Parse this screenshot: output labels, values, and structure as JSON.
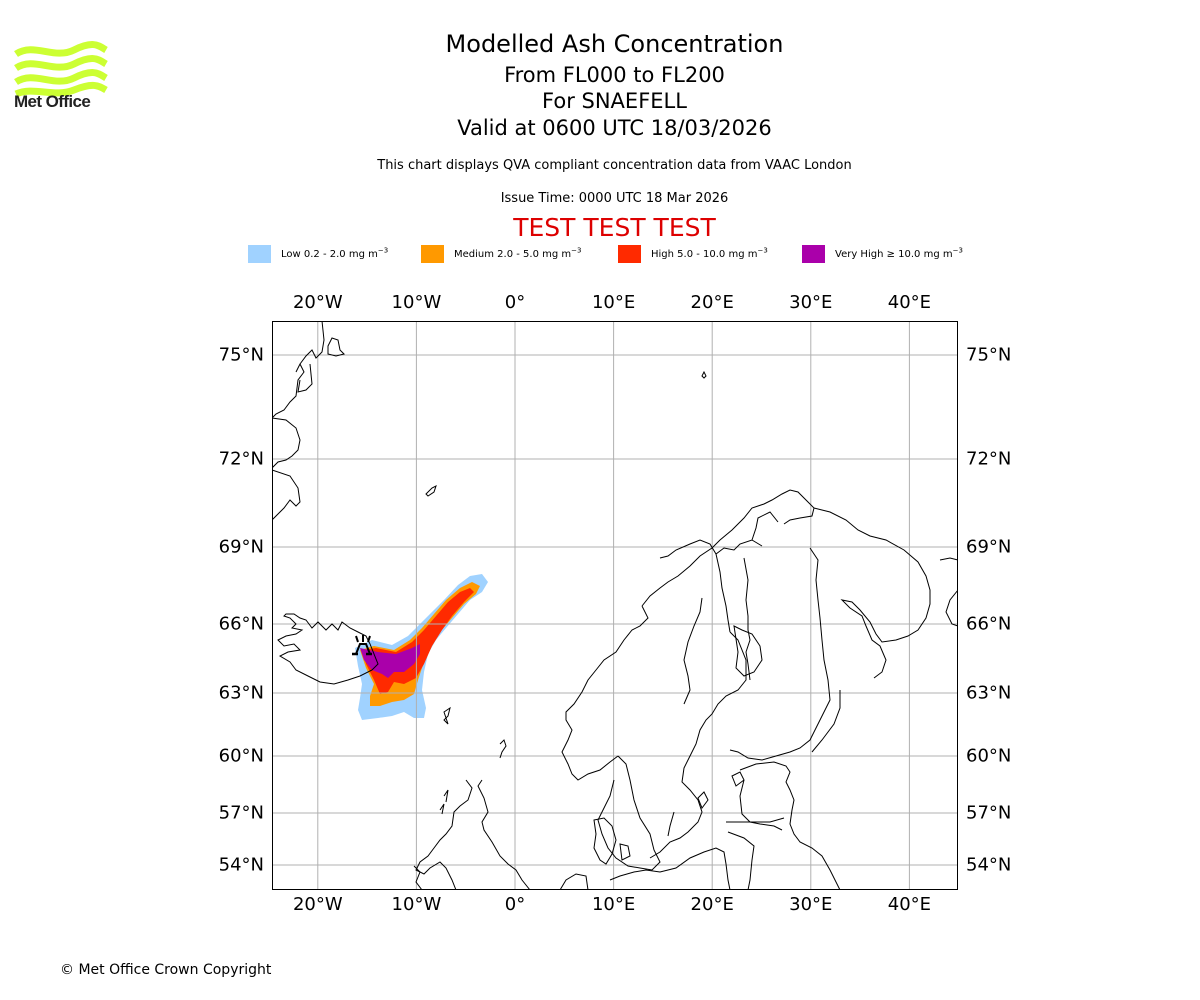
{
  "logo": {
    "text": "Met Office",
    "wave_color": "#ccff33"
  },
  "header": {
    "title": "Modelled Ash Concentration",
    "flight_levels": "From FL000 to FL200",
    "volcano": "For SNAEFELL",
    "valid": "Valid at 0600 UTC 18/03/2026",
    "subtitle": "This chart displays QVA compliant concentration data from VAAC London",
    "issue_time": "Issue Time: 0000 UTC 18 Mar 2026",
    "test_banner": "TEST TEST TEST"
  },
  "legend": [
    {
      "label": "Low 0.2 - 2.0 mg m",
      "unit_exp": "−3",
      "color": "#a0d2ff"
    },
    {
      "label": "Medium 2.0 - 5.0 mg m",
      "unit_exp": "−3",
      "color": "#ff9900"
    },
    {
      "label": "High 5.0 - 10.0 mg m",
      "unit_exp": "−3",
      "color": "#ff2a00"
    },
    {
      "label": "Very High  ≥  10.0 mg m",
      "unit_exp": "−3",
      "color": "#aa00aa"
    }
  ],
  "chart_data": {
    "type": "map",
    "title": "Modelled Ash Concentration",
    "longitude_ticks": [
      {
        "value": -20,
        "label": "20°W"
      },
      {
        "value": -10,
        "label": "10°W"
      },
      {
        "value": 0,
        "label": "0°"
      },
      {
        "value": 10,
        "label": "10°E"
      },
      {
        "value": 20,
        "label": "20°E"
      },
      {
        "value": 30,
        "label": "30°E"
      },
      {
        "value": 40,
        "label": "40°E"
      }
    ],
    "latitude_ticks": [
      {
        "value": 75,
        "label": "75°N"
      },
      {
        "value": 72,
        "label": "72°N"
      },
      {
        "value": 69,
        "label": "69°N"
      },
      {
        "value": 66,
        "label": "66°N"
      },
      {
        "value": 63,
        "label": "63°N"
      },
      {
        "value": 60,
        "label": "60°N"
      },
      {
        "value": 57,
        "label": "57°N"
      },
      {
        "value": 54,
        "label": "54°N"
      }
    ],
    "grid": true,
    "volcano_marker": {
      "name": "SNAEFELL",
      "lon": -15.6,
      "lat": 64.8
    },
    "grid_color": "#b0b0b0"
  },
  "footer": {
    "copyright": "© Met Office Crown Copyright"
  }
}
